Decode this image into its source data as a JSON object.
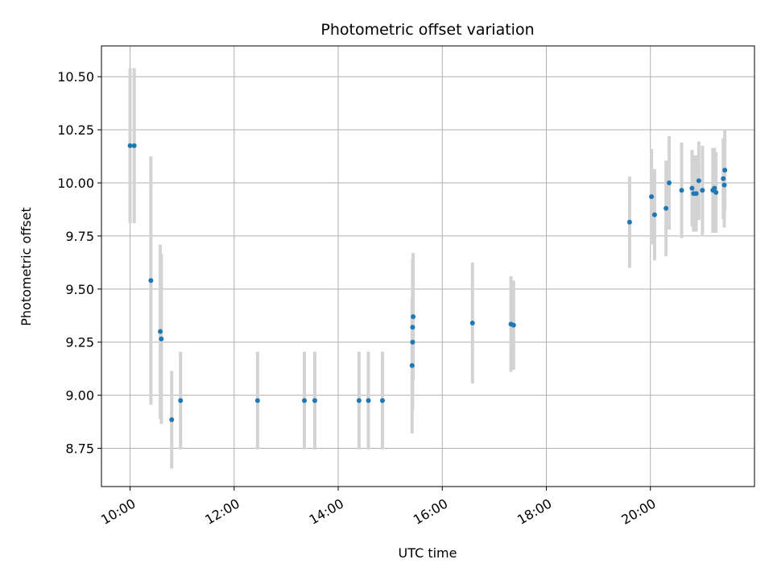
{
  "chart_data": {
    "type": "scatter",
    "title": "Photometric offset variation",
    "xlabel": "UTC time",
    "ylabel": "Photometric offset",
    "x_unit": "hours UTC",
    "xlim": [
      9.45,
      22.0
    ],
    "ylim": [
      8.57,
      10.645
    ],
    "x_ticks": [
      {
        "value": 10,
        "label": "10:00"
      },
      {
        "value": 12,
        "label": "12:00"
      },
      {
        "value": 14,
        "label": "14:00"
      },
      {
        "value": 16,
        "label": "16:00"
      },
      {
        "value": 18,
        "label": "18:00"
      },
      {
        "value": 20,
        "label": "20:00"
      }
    ],
    "y_ticks": [
      {
        "value": 8.75,
        "label": "8.75"
      },
      {
        "value": 9.0,
        "label": "9.00"
      },
      {
        "value": 9.25,
        "label": "9.25"
      },
      {
        "value": 9.5,
        "label": "9.50"
      },
      {
        "value": 9.75,
        "label": "9.75"
      },
      {
        "value": 10.0,
        "label": "10.00"
      },
      {
        "value": 10.25,
        "label": "10.25"
      },
      {
        "value": 10.5,
        "label": "10.50"
      }
    ],
    "grid": true,
    "marker_color": "#1f77b4",
    "errorbar_color": "#d3d3d3",
    "series": [
      {
        "points": [
          {
            "x": 10.0,
            "y": 10.175,
            "err": 0.365
          },
          {
            "x": 10.08,
            "y": 10.175,
            "err": 0.365
          },
          {
            "x": 10.4,
            "y": 9.54,
            "err": 0.585
          },
          {
            "x": 10.58,
            "y": 9.3,
            "err": 0.41
          },
          {
            "x": 10.6,
            "y": 9.265,
            "err": 0.4
          },
          {
            "x": 10.8,
            "y": 8.885,
            "err": 0.23
          },
          {
            "x": 10.97,
            "y": 8.975,
            "err": 0.23
          },
          {
            "x": 12.45,
            "y": 8.975,
            "err": 0.23
          },
          {
            "x": 13.35,
            "y": 8.975,
            "err": 0.23
          },
          {
            "x": 13.55,
            "y": 8.975,
            "err": 0.23
          },
          {
            "x": 14.4,
            "y": 8.975,
            "err": 0.23
          },
          {
            "x": 14.58,
            "y": 8.975,
            "err": 0.23
          },
          {
            "x": 14.85,
            "y": 8.975,
            "err": 0.23
          },
          {
            "x": 15.42,
            "y": 9.14,
            "err": 0.32
          },
          {
            "x": 15.43,
            "y": 9.25,
            "err": 0.32
          },
          {
            "x": 15.43,
            "y": 9.32,
            "err": 0.32
          },
          {
            "x": 15.44,
            "y": 9.37,
            "err": 0.3
          },
          {
            "x": 16.58,
            "y": 9.34,
            "err": 0.285
          },
          {
            "x": 17.32,
            "y": 9.335,
            "err": 0.225
          },
          {
            "x": 17.37,
            "y": 9.33,
            "err": 0.21
          },
          {
            "x": 19.6,
            "y": 9.815,
            "err": 0.215
          },
          {
            "x": 20.02,
            "y": 9.935,
            "err": 0.225
          },
          {
            "x": 20.08,
            "y": 9.85,
            "err": 0.215
          },
          {
            "x": 20.3,
            "y": 9.88,
            "err": 0.225
          },
          {
            "x": 20.36,
            "y": 10.0,
            "err": 0.22
          },
          {
            "x": 20.6,
            "y": 9.965,
            "err": 0.225
          },
          {
            "x": 20.8,
            "y": 9.975,
            "err": 0.18
          },
          {
            "x": 20.83,
            "y": 9.95,
            "err": 0.18
          },
          {
            "x": 20.88,
            "y": 9.95,
            "err": 0.18
          },
          {
            "x": 20.93,
            "y": 10.01,
            "err": 0.185
          },
          {
            "x": 21.0,
            "y": 9.965,
            "err": 0.21
          },
          {
            "x": 21.2,
            "y": 9.965,
            "err": 0.2
          },
          {
            "x": 21.23,
            "y": 9.975,
            "err": 0.19
          },
          {
            "x": 21.26,
            "y": 9.955,
            "err": 0.19
          },
          {
            "x": 21.4,
            "y": 10.02,
            "err": 0.19
          },
          {
            "x": 21.42,
            "y": 9.99,
            "err": 0.2
          },
          {
            "x": 21.43,
            "y": 10.06,
            "err": 0.19
          }
        ]
      }
    ]
  }
}
